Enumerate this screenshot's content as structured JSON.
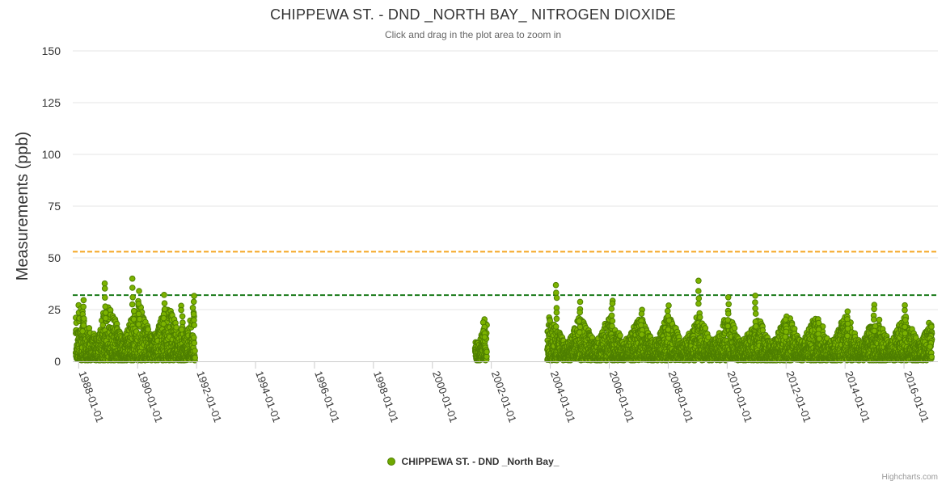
{
  "header": {
    "title": "CHIPPEWA ST. - DND _NORTH BAY_ NITROGEN DIOXIDE",
    "subtitle": "Click and drag in the plot area to zoom in"
  },
  "legend": {
    "label": "CHIPPEWA ST. - DND _North Bay_"
  },
  "credits": "Highcharts.com",
  "colors": {
    "series_fill": "#7cb300",
    "series_stroke": "#4e7f00",
    "grid": "#e6e6e6",
    "axis": "#cccccc",
    "threshold_orange": "#f5a623",
    "threshold_green": "#1a7a1a"
  },
  "chart_data": {
    "type": "scatter",
    "title": "CHIPPEWA ST. - DND _NORTH BAY_ NITROGEN DIOXIDE",
    "subtitle": "Click and drag in the plot area to zoom in",
    "xlabel": "",
    "ylabel": "Measurements (ppb)",
    "ylim": [
      0,
      150
    ],
    "yticks": [
      0,
      25,
      50,
      75,
      100,
      125,
      150
    ],
    "xlim": [
      1987.8,
      2017.15
    ],
    "xticks": [
      {
        "year": 1988,
        "label": "1988-01-01"
      },
      {
        "year": 1990,
        "label": "1990-01-01"
      },
      {
        "year": 1992,
        "label": "1992-01-01"
      },
      {
        "year": 1994,
        "label": "1994-01-01"
      },
      {
        "year": 1996,
        "label": "1996-01-01"
      },
      {
        "year": 1998,
        "label": "1998-01-01"
      },
      {
        "year": 2000,
        "label": "2000-01-01"
      },
      {
        "year": 2002,
        "label": "2002-01-01"
      },
      {
        "year": 2004,
        "label": "2004-01-01"
      },
      {
        "year": 2006,
        "label": "2006-01-01"
      },
      {
        "year": 2008,
        "label": "2008-01-01"
      },
      {
        "year": 2010,
        "label": "2010-01-01"
      },
      {
        "year": 2012,
        "label": "2012-01-01"
      },
      {
        "year": 2014,
        "label": "2014-01-01"
      },
      {
        "year": 2016,
        "label": "2016-01-01"
      }
    ],
    "thresholds": [
      {
        "value": 53,
        "color": "#f5a623",
        "style": "dashed"
      },
      {
        "value": 32,
        "color": "#1a7a1a",
        "style": "dashed"
      }
    ],
    "grid": true,
    "legend_position": "bottom-center",
    "series": [
      {
        "name": "CHIPPEWA ST. - DND _North Bay_",
        "data_segments": [
          {
            "start": 1987.9,
            "end": 1991.95,
            "typical_max": 22,
            "peaks": [
              {
                "x": 1988.15,
                "y": 30
              },
              {
                "x": 1988.9,
                "y": 39
              },
              {
                "x": 1989.85,
                "y": 40
              },
              {
                "x": 1990.05,
                "y": 34
              },
              {
                "x": 1990.9,
                "y": 33
              },
              {
                "x": 1991.5,
                "y": 28
              },
              {
                "x": 1991.9,
                "y": 33
              }
            ]
          },
          {
            "start": 2001.45,
            "end": 2001.85,
            "typical_max": 19,
            "peaks": [
              {
                "x": 2001.75,
                "y": 22
              }
            ]
          },
          {
            "start": 2003.9,
            "end": 2016.95,
            "typical_max": 17,
            "peaks": [
              {
                "x": 2004.2,
                "y": 38
              },
              {
                "x": 2005.0,
                "y": 29
              },
              {
                "x": 2006.1,
                "y": 31
              },
              {
                "x": 2007.1,
                "y": 26
              },
              {
                "x": 2008.0,
                "y": 28
              },
              {
                "x": 2009.05,
                "y": 39
              },
              {
                "x": 2010.05,
                "y": 32
              },
              {
                "x": 2010.95,
                "y": 32
              },
              {
                "x": 2012.0,
                "y": 23
              },
              {
                "x": 2013.1,
                "y": 21
              },
              {
                "x": 2014.1,
                "y": 25
              },
              {
                "x": 2015.0,
                "y": 28
              },
              {
                "x": 2016.05,
                "y": 28
              },
              {
                "x": 2016.9,
                "y": 14
              }
            ]
          }
        ]
      }
    ]
  }
}
